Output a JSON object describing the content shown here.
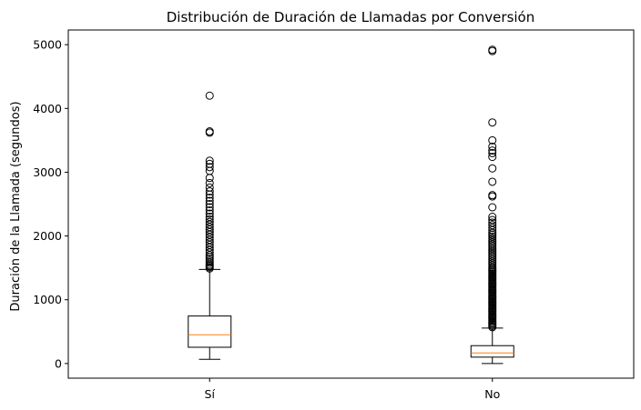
{
  "chart_data": {
    "type": "boxplot",
    "title": "Distribución de Duración de Llamadas por Conversión",
    "xlabel": "",
    "ylabel": "Duración de la Llamada (segundos)",
    "ylim": [
      -230,
      5230
    ],
    "yticks": [
      0,
      1000,
      2000,
      3000,
      4000,
      5000
    ],
    "grid": false,
    "colors": {
      "box": "#000000",
      "median": "#ff7f0e",
      "flier": "#000000"
    },
    "categories": [
      "Sí",
      "No"
    ],
    "boxes": [
      {
        "name": "Sí",
        "whislo": 65,
        "q1": 255,
        "med": 450,
        "q3": 745,
        "whishi": 1475,
        "fliers": [
          1490,
          1510,
          1530,
          1550,
          1580,
          1610,
          1640,
          1670,
          1700,
          1740,
          1780,
          1820,
          1860,
          1900,
          1940,
          1980,
          2020,
          2060,
          2100,
          2140,
          2180,
          2220,
          2260,
          2300,
          2350,
          2400,
          2450,
          2500,
          2550,
          2600,
          2650,
          2700,
          2760,
          2830,
          2910,
          3020,
          3080,
          3130,
          3180,
          3620,
          3640,
          4200
        ]
      },
      {
        "name": "No",
        "whislo": 0,
        "q1": 100,
        "med": 165,
        "q3": 280,
        "whishi": 555,
        "fliers": [
          570,
          590,
          610,
          630,
          650,
          670,
          690,
          710,
          730,
          750,
          770,
          790,
          810,
          830,
          850,
          870,
          890,
          910,
          930,
          950,
          970,
          990,
          1010,
          1030,
          1050,
          1070,
          1090,
          1110,
          1130,
          1150,
          1170,
          1190,
          1210,
          1230,
          1250,
          1270,
          1290,
          1310,
          1330,
          1350,
          1370,
          1390,
          1410,
          1430,
          1450,
          1470,
          1490,
          1510,
          1540,
          1570,
          1600,
          1630,
          1660,
          1690,
          1720,
          1750,
          1780,
          1810,
          1840,
          1870,
          1900,
          1930,
          1960,
          1990,
          2020,
          2050,
          2090,
          2130,
          2170,
          2210,
          2250,
          2300,
          2450,
          2620,
          2640,
          2850,
          3060,
          3240,
          3300,
          3340,
          3400,
          3500,
          3780,
          4900,
          4920
        ]
      }
    ]
  }
}
